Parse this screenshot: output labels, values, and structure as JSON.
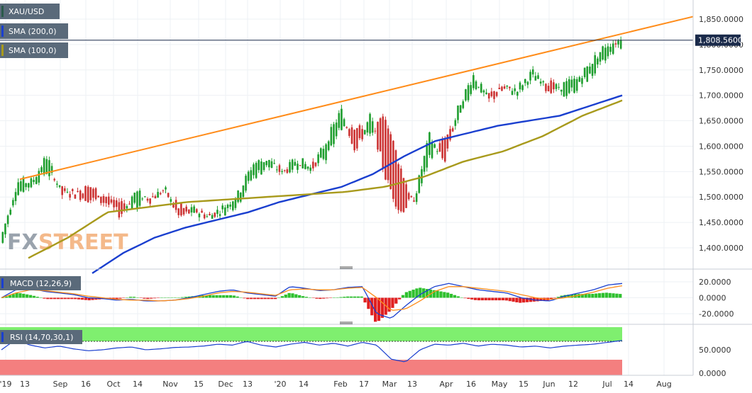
{
  "chart_data": [
    {
      "type": "candlestick",
      "title": "XAU/USD",
      "watermark": "FXSTREET",
      "last_price": 1808.56,
      "last_price_label": "1,808.5600",
      "y_ticks": [
        1850,
        1800,
        1750,
        1700,
        1650,
        1600,
        1550,
        1500,
        1450,
        1400
      ],
      "y_tick_labels": [
        "1,850.0000",
        "1,800.0000",
        "1,750.0000",
        "1,700.0000",
        "1,650.0000",
        "1,600.0000",
        "1,550.0000",
        "1,500.0000",
        "1,450.0000",
        "1,400.0000"
      ],
      "ylim": [
        1380,
        1870
      ],
      "x_tick_labels": [
        "'19",
        "13",
        "Sep",
        "16",
        "Oct",
        "14",
        "Nov",
        "15",
        "Dec",
        "13",
        "'20",
        "14",
        "Feb",
        "17",
        "Mar",
        "13",
        "Apr",
        "16",
        "May",
        "15",
        "Jun",
        "12",
        "Jul",
        "14",
        "Aug"
      ],
      "legend": [
        "XAU/USD",
        "SMA (200,0)",
        "SMA (100,0)"
      ],
      "colors": {
        "up": "#1e9e2e",
        "down": "#cc3333",
        "sma200": "#1a3fcf",
        "sma100": "#a89a1c",
        "trendline": "#ff8c1a",
        "price_line": "#1a2a4a"
      },
      "price_series_anchors": [
        [
          1410,
          1430
        ],
        [
          1510,
          1530
        ],
        [
          1525,
          1530
        ],
        [
          1550,
          1580
        ],
        [
          1520,
          1505
        ],
        [
          1510,
          1505
        ],
        [
          1520,
          1495
        ],
        [
          1500,
          1490
        ],
        [
          1490,
          1465
        ],
        [
          1480,
          1510
        ],
        [
          1500,
          1495
        ],
        [
          1510,
          1515
        ],
        [
          1480,
          1460
        ],
        [
          1470,
          1475
        ],
        [
          1465,
          1460
        ],
        [
          1470,
          1480
        ],
        [
          1490,
          1505
        ],
        [
          1540,
          1565
        ],
        [
          1560,
          1575
        ],
        [
          1555,
          1545
        ],
        [
          1560,
          1575
        ],
        [
          1560,
          1555
        ],
        [
          1575,
          1610
        ],
        [
          1640,
          1670
        ],
        [
          1640,
          1590
        ],
        [
          1620,
          1660
        ],
        [
          1660,
          1540
        ],
        [
          1560,
          1470
        ],
        [
          1480,
          1500
        ],
        [
          1580,
          1620
        ],
        [
          1610,
          1570
        ],
        [
          1650,
          1680
        ],
        [
          1720,
          1740
        ],
        [
          1700,
          1690
        ],
        [
          1720,
          1710
        ],
        [
          1700,
          1715
        ],
        [
          1735,
          1745
        ],
        [
          1730,
          1710
        ],
        [
          1700,
          1720
        ],
        [
          1715,
          1730
        ],
        [
          1740,
          1765
        ],
        [
          1770,
          1800
        ],
        [
          1808.56,
          1808.56
        ]
      ],
      "sma200_anchors": [
        1350,
        1390,
        1420,
        1440,
        1455,
        1470,
        1490,
        1505,
        1520,
        1545,
        1580,
        1610,
        1625,
        1640,
        1650,
        1660,
        1680,
        1700
      ],
      "sma100_anchors": [
        1380,
        1420,
        1470,
        1480,
        1490,
        1495,
        1500,
        1505,
        1510,
        1520,
        1540,
        1570,
        1590,
        1620,
        1660,
        1690
      ],
      "trendline": [
        1535,
        1855
      ]
    },
    {
      "type": "macd",
      "label": "MACD (12,26,9)",
      "y_ticks": [
        20,
        0,
        -20
      ],
      "y_tick_labels": [
        "20.0000",
        "0.0000",
        "-20.0000"
      ],
      "ylim": [
        -30,
        30
      ],
      "macd_line": [
        0,
        10,
        12,
        8,
        6,
        4,
        0,
        -1,
        -3,
        -2,
        -4,
        -4,
        -3,
        0,
        4,
        8,
        10,
        6,
        4,
        2,
        14,
        12,
        9,
        10,
        13,
        14,
        -20,
        -26,
        -10,
        4,
        14,
        18,
        14,
        10,
        8,
        6,
        0,
        -3,
        -4,
        2,
        6,
        10,
        16,
        18
      ],
      "signal_line": [
        0,
        6,
        10,
        9,
        7,
        5,
        2,
        0,
        -2,
        -3,
        -3,
        -4,
        -3,
        -1,
        2,
        6,
        8,
        7,
        5,
        3,
        10,
        11,
        10,
        10,
        12,
        13,
        0,
        -16,
        -14,
        -4,
        8,
        14,
        14,
        12,
        10,
        8,
        4,
        0,
        -2,
        0,
        3,
        7,
        12,
        15
      ],
      "colors": {
        "macd": "#1a3fcf",
        "signal": "#ff8c1a",
        "hist_pos": "#2ec02e",
        "hist_neg": "#e02020"
      }
    },
    {
      "type": "rsi",
      "label": "RSI (14,70,30,1)",
      "y_ticks": [
        50,
        0
      ],
      "y_tick_labels": [
        "50.0000",
        "0.0000"
      ],
      "ylim": [
        0,
        100
      ],
      "upper_band": 70,
      "lower_band": 30,
      "rsi_line": [
        50,
        72,
        60,
        54,
        58,
        52,
        48,
        50,
        54,
        56,
        50,
        52,
        55,
        56,
        58,
        62,
        60,
        68,
        60,
        56,
        62,
        66,
        60,
        64,
        58,
        66,
        60,
        30,
        24,
        50,
        62,
        60,
        64,
        58,
        62,
        60,
        56,
        58,
        54,
        58,
        60,
        62,
        66,
        70
      ],
      "colors": {
        "line": "#1a3fcf",
        "upper_zone": "#7fef6f",
        "lower_zone": "#f47f7f"
      }
    }
  ]
}
